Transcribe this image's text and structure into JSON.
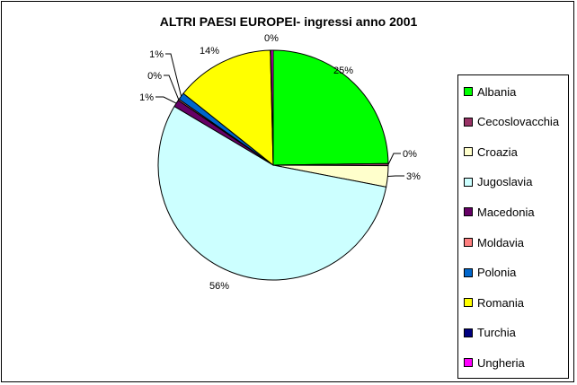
{
  "chart_data": {
    "type": "pie",
    "title": "ALTRI PAESI EUROPEI- ingressi anno 2001",
    "categories": [
      "Albania",
      "Cecoslovacchia",
      "Croazia",
      "Jugoslavia",
      "Macedonia",
      "Moldavia",
      "Polonia",
      "Romania",
      "Turchia",
      "Ungheria"
    ],
    "values": [
      25,
      0.3,
      3,
      56,
      1,
      0.2,
      1,
      14,
      0.1,
      0.3
    ],
    "data_labels": [
      "25%",
      "0%",
      "3%",
      "56%",
      "1%",
      "0%",
      "1%",
      "14%",
      "0%",
      "0%"
    ],
    "colors": [
      "#00ff00",
      "#993366",
      "#ffffcc",
      "#ccffff",
      "#660066",
      "#ff8080",
      "#0066cc",
      "#ffff00",
      "#000080",
      "#ff00ff"
    ],
    "legend_position": "right"
  }
}
